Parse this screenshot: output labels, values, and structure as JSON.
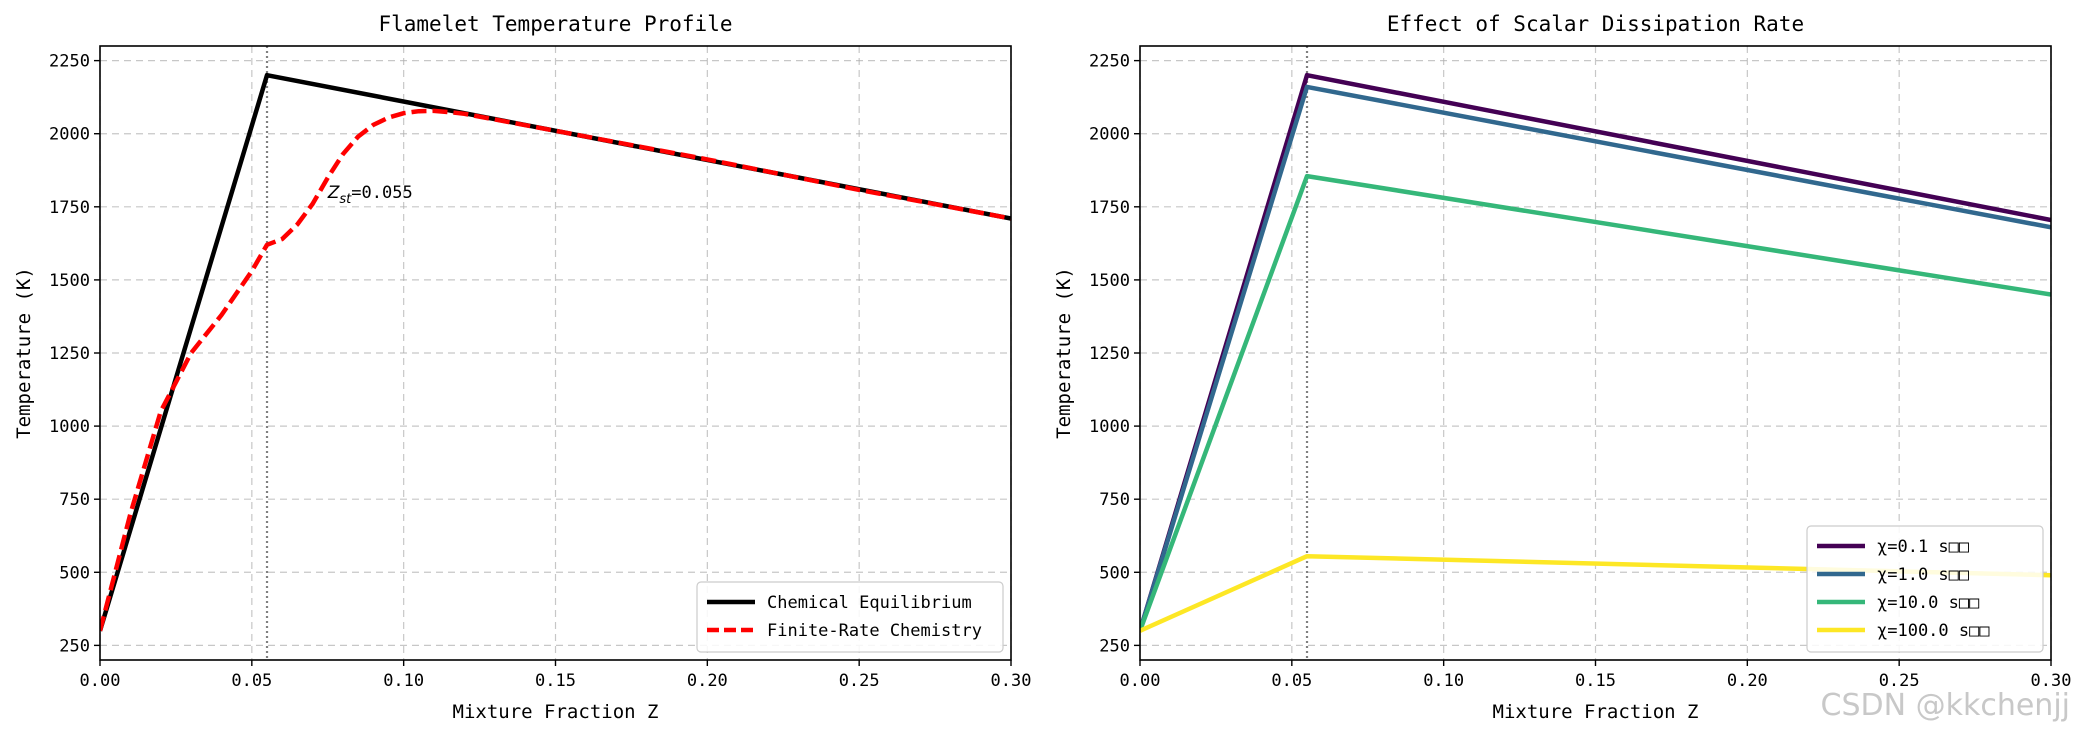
{
  "chart_data": [
    {
      "type": "line",
      "title": "Flamelet Temperature Profile",
      "xlabel": "Mixture Fraction Z",
      "ylabel": "Temperature (K)",
      "xlim": [
        0,
        0.3
      ],
      "ylim": [
        200,
        2300
      ],
      "xticks": [
        0,
        0.05,
        0.1,
        0.15,
        0.2,
        0.25,
        0.3
      ],
      "xtick_labels": [
        "0.00",
        "0.05",
        "0.10",
        "0.15",
        "0.20",
        "0.25",
        "0.30"
      ],
      "yticks": [
        250,
        500,
        750,
        1000,
        1250,
        1500,
        1750,
        2000,
        2250
      ],
      "ytick_labels": [
        "250",
        "500",
        "750",
        "1000",
        "1250",
        "1500",
        "1750",
        "2000",
        "2250"
      ],
      "grid": true,
      "legend_position": "lower-right",
      "vline": 0.055,
      "annotation": {
        "main": "Z",
        "sub": "st",
        "rest": "=0.055",
        "x": 0.075,
        "y": 1800
      },
      "series": [
        {
          "name": "Chemical Equilibrium",
          "color": "#000000",
          "dash": "solid",
          "x": [
            0,
            0.055,
            0.3
          ],
          "y": [
            300,
            2200,
            1710
          ]
        },
        {
          "name": "Finite-Rate Chemistry",
          "color": "#ff0000",
          "dash": "dashed",
          "x": [
            0,
            0.01,
            0.02,
            0.03,
            0.04,
            0.05,
            0.055,
            0.06,
            0.065,
            0.07,
            0.075,
            0.08,
            0.085,
            0.09,
            0.095,
            0.1,
            0.105,
            0.11,
            0.115,
            0.12,
            0.15,
            0.2,
            0.25,
            0.3
          ],
          "y": [
            300,
            700,
            1050,
            1250,
            1380,
            1530,
            1620,
            1640,
            1690,
            1760,
            1850,
            1930,
            1990,
            2030,
            2055,
            2070,
            2077,
            2078,
            2074,
            2068,
            2010,
            1912,
            1808,
            1710
          ]
        }
      ]
    },
    {
      "type": "line",
      "title": "Effect of Scalar Dissipation Rate",
      "xlabel": "Mixture Fraction Z",
      "ylabel": "Temperature (K)",
      "xlim": [
        0,
        0.3
      ],
      "ylim": [
        200,
        2300
      ],
      "xticks": [
        0,
        0.05,
        0.1,
        0.15,
        0.2,
        0.25,
        0.3
      ],
      "xtick_labels": [
        "0.00",
        "0.05",
        "0.10",
        "0.15",
        "0.20",
        "0.25",
        "0.30"
      ],
      "yticks": [
        250,
        500,
        750,
        1000,
        1250,
        1500,
        1750,
        2000,
        2250
      ],
      "ytick_labels": [
        "250",
        "500",
        "750",
        "1000",
        "1250",
        "1500",
        "1750",
        "2000",
        "2250"
      ],
      "grid": true,
      "legend_position": "lower-right",
      "vline": 0.055,
      "series": [
        {
          "name": "χ=0.1 s□□",
          "color": "#440154",
          "dash": "solid",
          "x": [
            0,
            0.055,
            0.3
          ],
          "y": [
            300,
            2200,
            1705
          ]
        },
        {
          "name": "χ=1.0 s□□",
          "color": "#31688e",
          "dash": "solid",
          "x": [
            0,
            0.055,
            0.3
          ],
          "y": [
            300,
            2160,
            1680
          ]
        },
        {
          "name": "χ=10.0 s□□",
          "color": "#35b779",
          "dash": "solid",
          "x": [
            0,
            0.055,
            0.3
          ],
          "y": [
            300,
            1855,
            1450
          ]
        },
        {
          "name": "χ=100.0 s□□",
          "color": "#fde725",
          "dash": "solid",
          "x": [
            0,
            0.055,
            0.3
          ],
          "y": [
            300,
            555,
            490
          ]
        }
      ]
    }
  ],
  "watermark": "CSDN @kkchenjj"
}
